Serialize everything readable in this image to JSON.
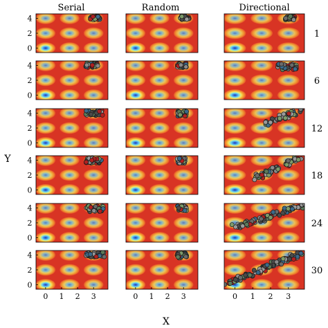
{
  "chart_data": {
    "type": "scatter",
    "background": "heatmap",
    "columns": [
      "Serial",
      "Random",
      "Directional"
    ],
    "rows": [
      "1",
      "6",
      "12",
      "18",
      "24",
      "30"
    ],
    "xlabel": "X",
    "ylabel": "Y",
    "xlim": [
      -0.6,
      3.9
    ],
    "ylim": [
      -0.6,
      4.6
    ],
    "xticks": [
      "0",
      "1",
      "2",
      "3"
    ],
    "yticks": [
      "0",
      "2",
      "4"
    ],
    "xtick_values": [
      0,
      1,
      2,
      3
    ],
    "ytick_values": [
      0,
      2,
      4
    ],
    "grid": false,
    "colormap": [
      "#2a2fb0",
      "#3a8ae0",
      "#6fd6f2",
      "#f0ec6a",
      "#f6a832",
      "#e8502a",
      "#d83424"
    ],
    "point_colors": [
      "#6a6a6a",
      "#8a8a8a",
      "#5c7a5a",
      "#7c9a6a",
      "#b02020",
      "#3a6a8a",
      "#9a9a9a",
      "#4a4a4a"
    ],
    "wells": [
      {
        "x": 0,
        "y": 0,
        "depth": 1.0
      },
      {
        "x": 1.5,
        "y": 0,
        "depth": 0.55
      },
      {
        "x": 3,
        "y": 0,
        "depth": 0.45
      },
      {
        "x": 0,
        "y": 2,
        "depth": 0.55
      },
      {
        "x": 1.5,
        "y": 2,
        "depth": 0.5
      },
      {
        "x": 3,
        "y": 2,
        "depth": 0.42
      },
      {
        "x": 0,
        "y": 4,
        "depth": 0.45
      },
      {
        "x": 1.5,
        "y": 4,
        "depth": 0.42
      },
      {
        "x": 3,
        "y": 4,
        "depth": 0.4
      }
    ],
    "clusters": [
      [
        {
          "x": [
            2.8,
            3.4
          ],
          "y": [
            3.8,
            4.3
          ],
          "n": 30
        },
        {
          "x": [
            2.5,
            3.3
          ],
          "y": [
            3.7,
            4.3
          ],
          "n": 32
        },
        {
          "x": [
            2.5,
            3.6
          ],
          "y": [
            3.7,
            4.4
          ],
          "n": 32
        },
        {
          "x": [
            2.5,
            3.5
          ],
          "y": [
            3.6,
            4.3
          ],
          "n": 32
        },
        {
          "x": [
            2.5,
            3.6
          ],
          "y": [
            3.5,
            4.4
          ],
          "n": 32
        },
        {
          "x": [
            2.5,
            3.7
          ],
          "y": [
            3.7,
            4.4
          ],
          "n": 32
        }
      ],
      [
        {
          "x": [
            2.8,
            3.4
          ],
          "y": [
            3.8,
            4.3
          ],
          "n": 30
        },
        {
          "x": [
            2.6,
            3.2
          ],
          "y": [
            3.7,
            4.3
          ],
          "n": 28
        },
        {
          "x": [
            2.6,
            3.2
          ],
          "y": [
            3.6,
            4.3
          ],
          "n": 28
        },
        {
          "x": [
            2.6,
            3.2
          ],
          "y": [
            3.6,
            4.3
          ],
          "n": 28
        },
        {
          "x": [
            2.6,
            3.2
          ],
          "y": [
            3.6,
            4.3
          ],
          "n": 28
        },
        {
          "x": [
            2.6,
            3.2
          ],
          "y": [
            3.6,
            4.3
          ],
          "n": 28
        }
      ],
      [
        {
          "x": [
            2.8,
            3.4
          ],
          "y": [
            3.8,
            4.3
          ],
          "n": 30
        },
        {
          "x": [
            2.4,
            3.5
          ],
          "y": [
            3.4,
            4.2
          ],
          "n": 34
        },
        {
          "x": [
            1.6,
            3.6
          ],
          "y": [
            2.4,
            4.3
          ],
          "n": 44,
          "diagonal": true
        },
        {
          "x": [
            1.2,
            3.7
          ],
          "y": [
            1.6,
            4.3
          ],
          "n": 70,
          "diagonal": true
        },
        {
          "x": [
            0.0,
            3.7
          ],
          "y": [
            1.4,
            4.3
          ],
          "n": 85,
          "diagonal": true
        },
        {
          "x": [
            -0.4,
            3.8
          ],
          "y": [
            0.2,
            4.3
          ],
          "n": 100,
          "diagonal": true
        }
      ]
    ]
  }
}
